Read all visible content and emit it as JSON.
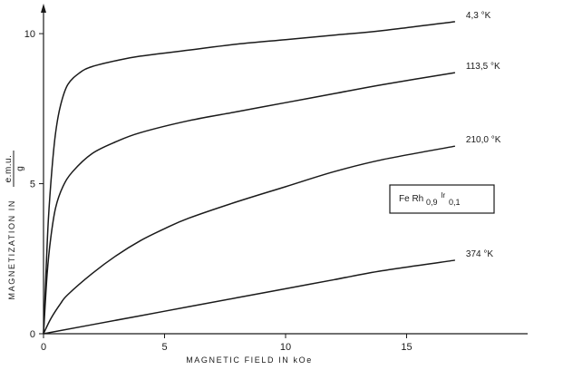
{
  "chart_data": {
    "type": "line",
    "xlabel": "MAGNETIC  FIELD  IN  kOe",
    "ylabel_prefix": "MAGNETIZATION  IN",
    "ylabel_unit_num": "e.m.u.",
    "ylabel_unit_den": "g",
    "xlim": [
      0,
      20
    ],
    "ylim": [
      0,
      11
    ],
    "x_ticks": [
      0,
      5,
      10,
      15
    ],
    "x_tick_labels": [
      "0",
      "5",
      "10",
      "15"
    ],
    "y_ticks": [
      0,
      5,
      10
    ],
    "y_tick_labels": [
      "0",
      "5",
      "10"
    ],
    "legend": {
      "base": "Fe Rh",
      "sub1": "0,9",
      "ir": "Ir",
      "sub2": "0,1",
      "placement": "right"
    },
    "series": [
      {
        "name": "4,3 °K",
        "x": [
          0,
          0.1,
          0.2,
          0.35,
          0.5,
          0.7,
          1.0,
          1.5,
          2.0,
          3.0,
          4.0,
          6.0,
          8.0,
          10.0,
          12.0,
          14.0,
          17.0
        ],
        "y": [
          0,
          2.0,
          3.8,
          5.5,
          6.7,
          7.6,
          8.3,
          8.7,
          8.9,
          9.1,
          9.25,
          9.45,
          9.65,
          9.8,
          9.95,
          10.1,
          10.4
        ]
      },
      {
        "name": "113,5 °K",
        "x": [
          0,
          0.15,
          0.3,
          0.5,
          0.8,
          1.2,
          2.0,
          3.0,
          4.0,
          6.0,
          8.0,
          10.0,
          12.0,
          14.0,
          17.0
        ],
        "y": [
          0,
          2.0,
          3.2,
          4.2,
          4.9,
          5.4,
          6.0,
          6.4,
          6.7,
          7.1,
          7.4,
          7.7,
          8.0,
          8.3,
          8.7
        ]
      },
      {
        "name": "210,0 °K",
        "x": [
          0,
          0.3,
          0.7,
          1.0,
          2.0,
          3.0,
          4.0,
          5.0,
          6.0,
          8.0,
          10.0,
          12.0,
          14.0,
          17.0
        ],
        "y": [
          0,
          0.5,
          1.0,
          1.3,
          2.0,
          2.6,
          3.1,
          3.5,
          3.85,
          4.4,
          4.9,
          5.4,
          5.8,
          6.25
        ]
      },
      {
        "name": "374 °K",
        "x": [
          0,
          2.0,
          5.0,
          8.0,
          10.0,
          12.0,
          14.0,
          17.0
        ],
        "y": [
          0,
          0.3,
          0.75,
          1.2,
          1.5,
          1.8,
          2.1,
          2.45
        ]
      }
    ]
  }
}
